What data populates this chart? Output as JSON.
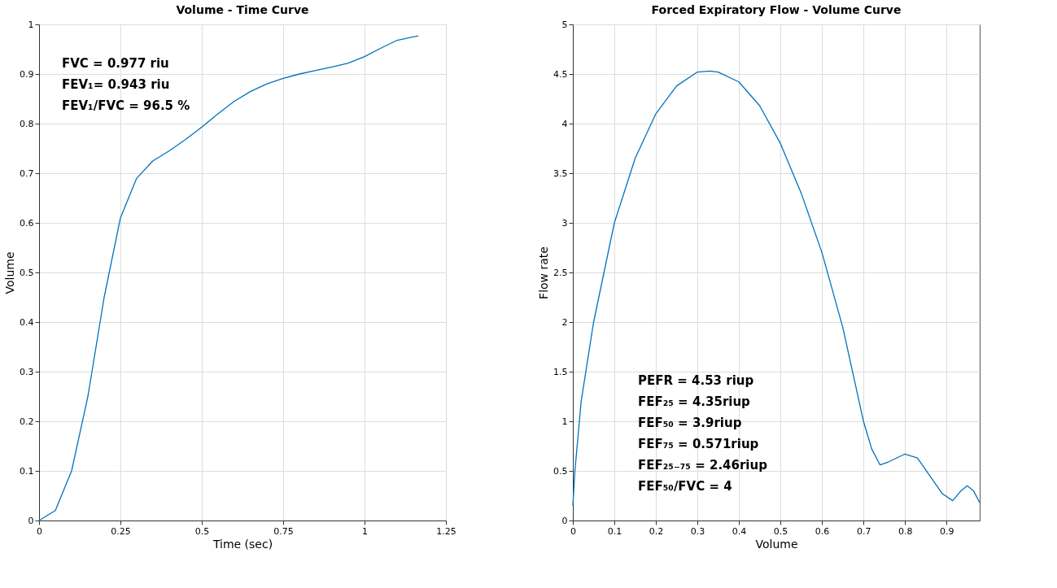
{
  "chart_data": [
    {
      "type": "line",
      "title": "Volume  - Time Curve",
      "xlabel": "Time (sec)",
      "ylabel": "Volume",
      "xlim": [
        0,
        1.25
      ],
      "xticks": [
        0,
        0.25,
        0.5,
        0.75,
        1,
        1.25
      ],
      "ylim": [
        0,
        1
      ],
      "yticks": [
        0,
        0.1,
        0.2,
        0.3,
        0.4,
        0.5,
        0.6,
        0.7,
        0.8,
        0.9,
        1
      ],
      "grid": true,
      "annotations": [
        "FVC = 0.977 riu",
        "FEV₁= 0.943 riu",
        "FEV₁/FVC = 96.5 %"
      ],
      "series": [
        {
          "color": "#0072bd",
          "x": [
            0,
            0.05,
            0.1,
            0.15,
            0.2,
            0.25,
            0.3,
            0.35,
            0.4,
            0.45,
            0.5,
            0.55,
            0.6,
            0.65,
            0.7,
            0.75,
            0.8,
            0.85,
            0.9,
            0.95,
            1.0,
            1.05,
            1.1,
            1.165
          ],
          "values": [
            0,
            0.02,
            0.1,
            0.25,
            0.45,
            0.61,
            0.69,
            0.725,
            0.745,
            0.768,
            0.793,
            0.82,
            0.845,
            0.865,
            0.88,
            0.891,
            0.9,
            0.907,
            0.914,
            0.922,
            0.935,
            0.952,
            0.968,
            0.977
          ]
        }
      ]
    },
    {
      "type": "line",
      "title": "Forced Expiratory Flow - Volume Curve",
      "xlabel": "Volume",
      "ylabel": "Flow rate",
      "xlim": [
        0,
        0.98
      ],
      "xticks": [
        0,
        0.1,
        0.2,
        0.3,
        0.4,
        0.5,
        0.6,
        0.7,
        0.8,
        0.9
      ],
      "ylim": [
        0,
        5
      ],
      "yticks": [
        0,
        0.5,
        1,
        1.5,
        2,
        2.5,
        3,
        3.5,
        4,
        4.5,
        5
      ],
      "grid": true,
      "annotations": [
        "PEFR = 4.53 riup",
        "FEF₂₅ = 4.35riup",
        "FEF₅₀ = 3.9riup",
        "FEF₇₅ = 0.571riup",
        "FEF₂₅₋₇₅ = 2.46riup",
        "FEF₅₀/FVC = 4"
      ],
      "series": [
        {
          "color": "#0072bd",
          "x": [
            0,
            0.005,
            0.02,
            0.05,
            0.1,
            0.15,
            0.2,
            0.25,
            0.3,
            0.33,
            0.35,
            0.4,
            0.45,
            0.5,
            0.55,
            0.6,
            0.65,
            0.7,
            0.72,
            0.74,
            0.76,
            0.8,
            0.83,
            0.86,
            0.89,
            0.915,
            0.935,
            0.95,
            0.965,
            0.98
          ],
          "values": [
            0.15,
            0.5,
            1.2,
            2.0,
            3.0,
            3.65,
            4.1,
            4.38,
            4.52,
            4.53,
            4.52,
            4.42,
            4.18,
            3.8,
            3.3,
            2.7,
            1.95,
            1.0,
            0.72,
            0.56,
            0.59,
            0.67,
            0.63,
            0.45,
            0.27,
            0.2,
            0.3,
            0.35,
            0.3,
            0.18
          ]
        }
      ]
    }
  ]
}
